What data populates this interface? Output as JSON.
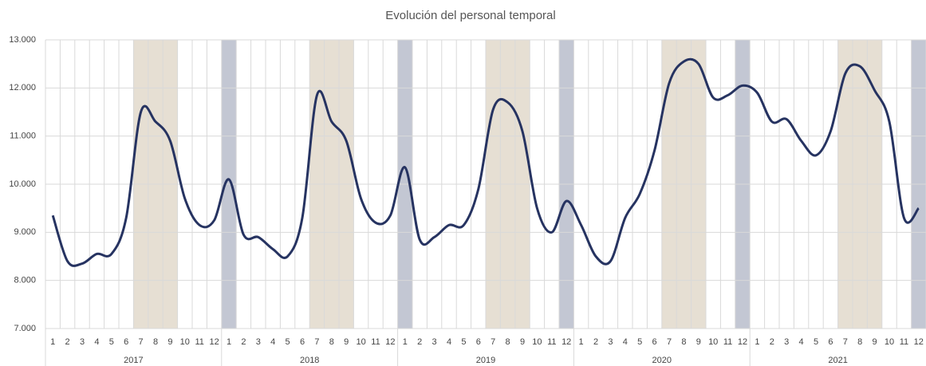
{
  "chart_data": {
    "type": "line",
    "title": "Evolución del personal temporal",
    "categories": [
      "1",
      "2",
      "3",
      "4",
      "5",
      "6",
      "7",
      "8",
      "9",
      "10",
      "11",
      "12",
      "1",
      "2",
      "3",
      "4",
      "5",
      "6",
      "7",
      "8",
      "9",
      "10",
      "11",
      "12",
      "1",
      "2",
      "3",
      "4",
      "5",
      "6",
      "7",
      "8",
      "9",
      "10",
      "11",
      "12",
      "1",
      "2",
      "3",
      "4",
      "5",
      "6",
      "7",
      "8",
      "9",
      "10",
      "11",
      "12",
      "1",
      "2",
      "3",
      "4",
      "5",
      "6",
      "7",
      "8",
      "9",
      "10",
      "11",
      "12"
    ],
    "years": [
      "2017",
      "2018",
      "2019",
      "2020",
      "2021"
    ],
    "series": [
      {
        "name": "Personal temporal",
        "color": "#263361",
        "values": [
          9350,
          8400,
          8350,
          8550,
          8550,
          9300,
          11500,
          11300,
          10900,
          9700,
          9150,
          9250,
          10100,
          8950,
          8900,
          8650,
          8500,
          9300,
          11850,
          11300,
          10900,
          9700,
          9200,
          9350,
          10350,
          8850,
          8900,
          9150,
          9150,
          9900,
          11550,
          11700,
          11100,
          9500,
          9000,
          9650,
          9150,
          8500,
          8400,
          9300,
          9800,
          10700,
          12100,
          12550,
          12500,
          11800,
          11850,
          12050,
          11900,
          11300,
          11350,
          10900,
          10600,
          11100,
          12300,
          12450,
          11950,
          11300,
          9300,
          9500
        ]
      }
    ],
    "ylim": [
      7000,
      13000
    ],
    "yticks": [
      {
        "value": 7000,
        "label": "7.000"
      },
      {
        "value": 8000,
        "label": "8.000"
      },
      {
        "value": 9000,
        "label": "9.000"
      },
      {
        "value": 10000,
        "label": "10.000"
      },
      {
        "value": 11000,
        "label": "11.000"
      },
      {
        "value": 12000,
        "label": "12.000"
      },
      {
        "value": 13000,
        "label": "13.000"
      }
    ],
    "grid": true
  }
}
